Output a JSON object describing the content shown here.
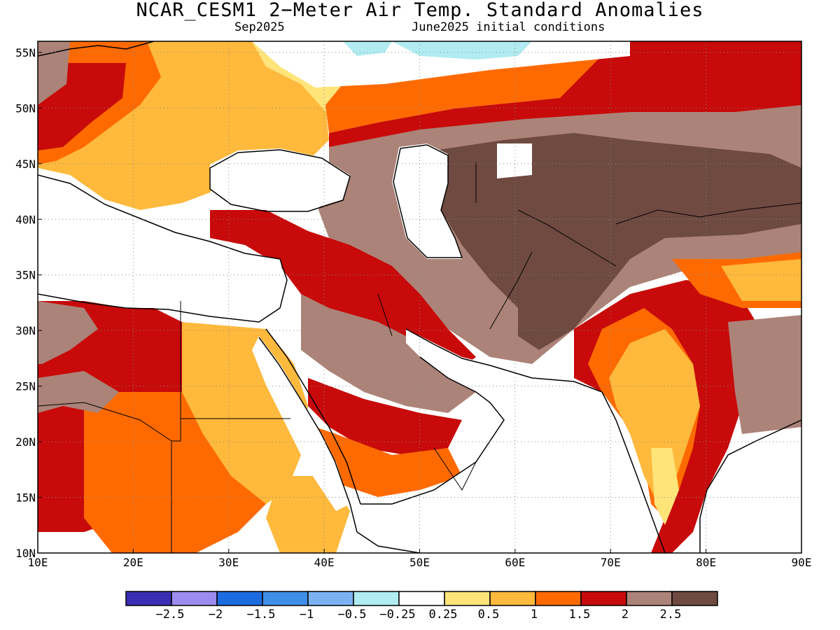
{
  "title": "NCAR_CESM1 2−Meter Air Temp. Standard Anomalies",
  "subtitle_left": "Sep2025",
  "subtitle_right": "June2025 initial conditions",
  "map": {
    "lon_range": [
      10,
      90
    ],
    "lat_range": [
      10,
      56
    ],
    "lon_ticks": [
      {
        "value": 10,
        "label": "10E"
      },
      {
        "value": 20,
        "label": "20E"
      },
      {
        "value": 30,
        "label": "30E"
      },
      {
        "value": 40,
        "label": "40E"
      },
      {
        "value": 50,
        "label": "50E"
      },
      {
        "value": 60,
        "label": "60E"
      },
      {
        "value": 70,
        "label": "70E"
      },
      {
        "value": 80,
        "label": "80E"
      },
      {
        "value": 90,
        "label": "90E"
      }
    ],
    "lat_ticks": [
      {
        "value": 10,
        "label": "10N"
      },
      {
        "value": 15,
        "label": "15N"
      },
      {
        "value": 20,
        "label": "20N"
      },
      {
        "value": 25,
        "label": "25N"
      },
      {
        "value": 30,
        "label": "30N"
      },
      {
        "value": 35,
        "label": "35N"
      },
      {
        "value": 40,
        "label": "40N"
      },
      {
        "value": 45,
        "label": "45N"
      },
      {
        "value": 50,
        "label": "50N"
      },
      {
        "value": 55,
        "label": "55N"
      }
    ],
    "grid": "dotted"
  },
  "colorbar": {
    "colors": [
      "#3a2fb4",
      "#9c8cf0",
      "#1d6be0",
      "#3f8fe8",
      "#7bb3f2",
      "#b0ecf2",
      "#ffffff",
      "#ffe47a",
      "#ffb93c",
      "#ff6a00",
      "#c80a0a",
      "#ac8378",
      "#6e4a40"
    ],
    "labels": [
      "−2.5",
      "−2",
      "−1.5",
      "−1",
      "−0.5",
      "−0.25",
      "0.25",
      "0.5",
      "1",
      "1.5",
      "2",
      "2.5"
    ]
  },
  "chart_data": {
    "type": "heatmap",
    "title": "NCAR_CESM1 2−Meter Air Temp. Standard Anomalies",
    "subtitle": [
      "Sep2025",
      "June2025 initial conditions"
    ],
    "x_range": [
      10,
      90
    ],
    "y_range": [
      10,
      56
    ],
    "x_ticks": [
      "10E",
      "20E",
      "30E",
      "40E",
      "50E",
      "60E",
      "70E",
      "80E",
      "90E"
    ],
    "y_ticks": [
      "10N",
      "15N",
      "20N",
      "25N",
      "30N",
      "35N",
      "40N",
      "45N",
      "50N",
      "55N"
    ],
    "legend_bins": [
      "−2.5",
      "−2",
      "−1.5",
      "−1",
      "−0.5",
      "−0.25",
      "0.25",
      "0.5",
      "1",
      "1.5",
      "2",
      "2.5"
    ],
    "regions": [
      {
        "lon": [
          60,
          75
        ],
        "lat": [
          30,
          45
        ],
        "anomaly": 2.5
      },
      {
        "lon": [
          45,
          60
        ],
        "lat": [
          25,
          40
        ],
        "anomaly": 2.0
      },
      {
        "lon": [
          10,
          25
        ],
        "lat": [
          10,
          30
        ],
        "anomaly": 1.5
      },
      {
        "lon": [
          25,
          45
        ],
        "lat": [
          10,
          30
        ],
        "anomaly": 1.0
      },
      {
        "lon": [
          10,
          35
        ],
        "lat": [
          40,
          56
        ],
        "anomaly": 1.0
      },
      {
        "lon": [
          35,
          60
        ],
        "lat": [
          50,
          56
        ],
        "anomaly": 0.0
      },
      {
        "lon": [
          60,
          90
        ],
        "lat": [
          48,
          56
        ],
        "anomaly": 1.5
      },
      {
        "lon": [
          70,
          80
        ],
        "lat": [
          15,
          30
        ],
        "anomaly": 1.0
      }
    ]
  }
}
